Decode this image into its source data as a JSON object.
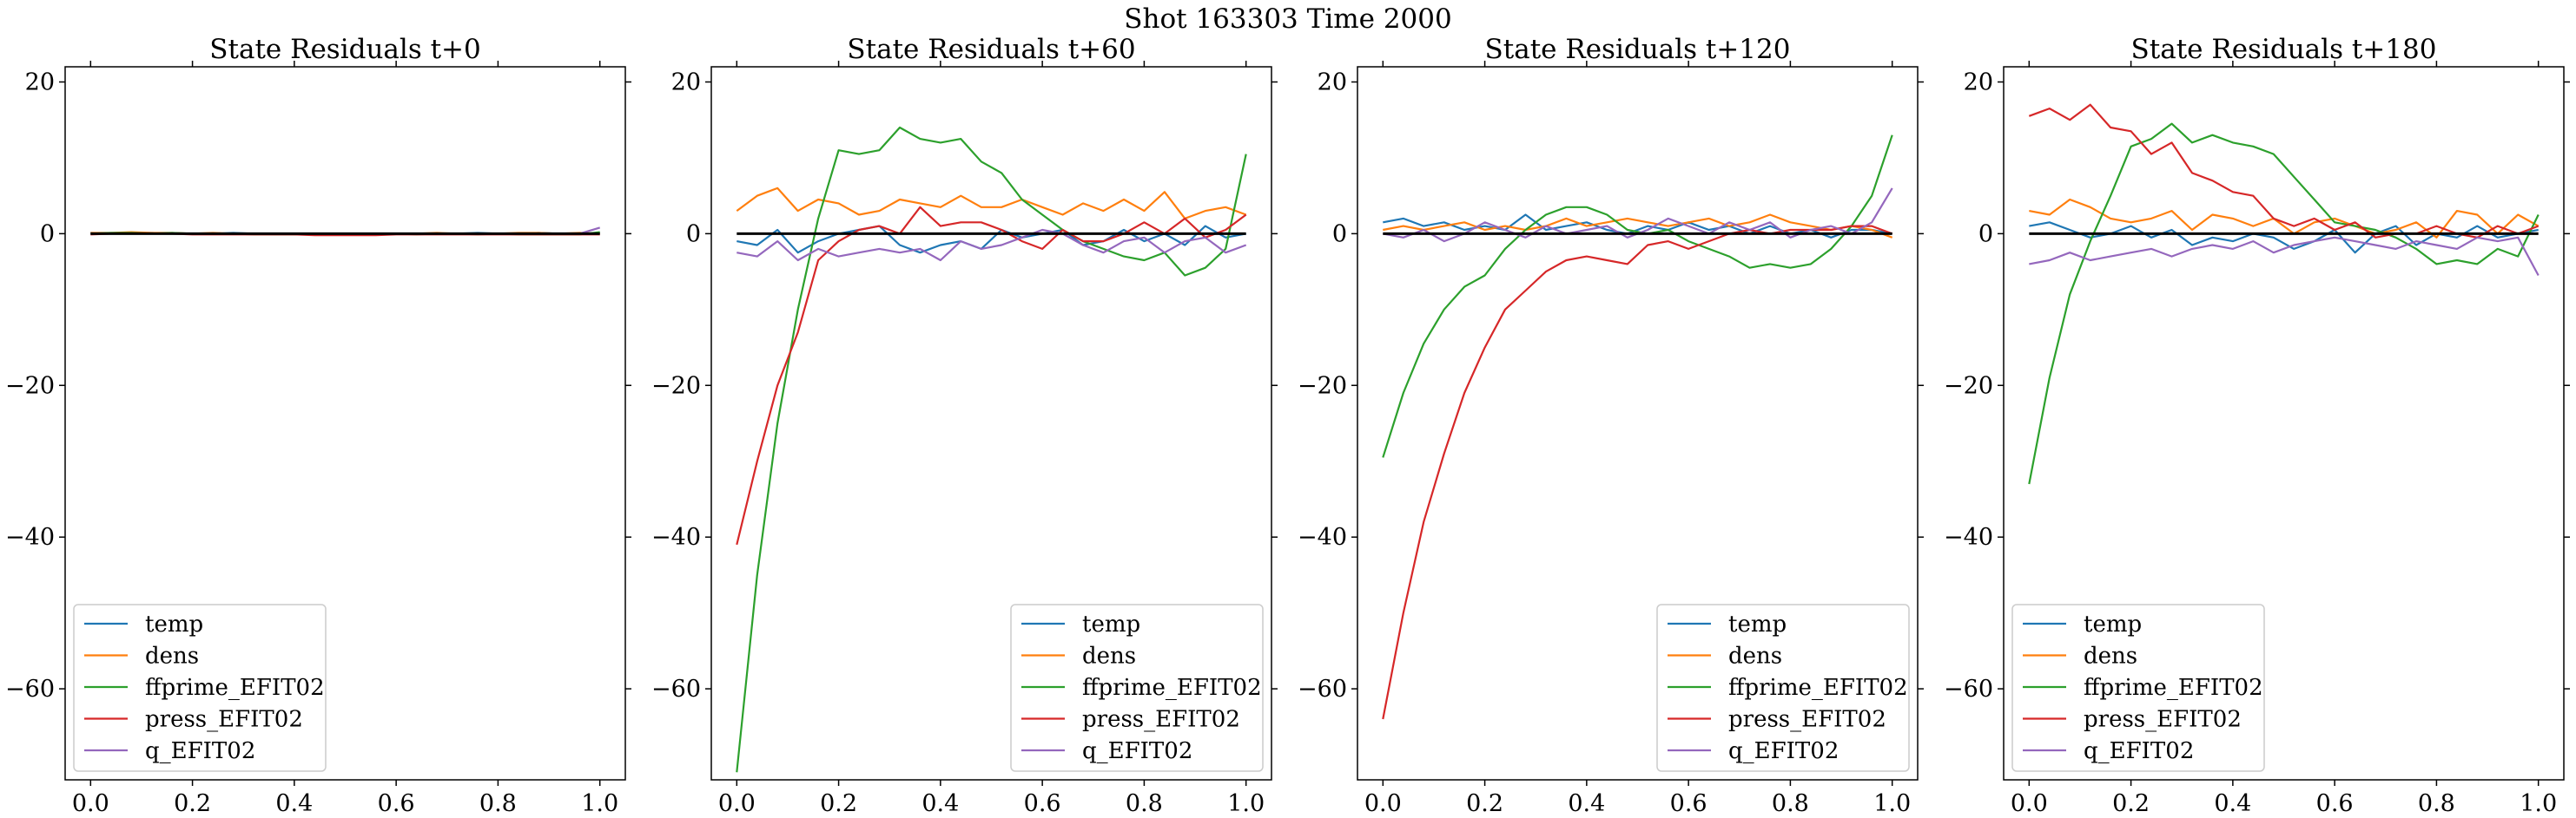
{
  "figure": {
    "title": "Shot 163303   Time 2000"
  },
  "chart_data": [
    {
      "type": "line",
      "title": "State Residuals t+0",
      "xlabel": "",
      "ylabel": "",
      "xlim": [
        -0.05,
        1.05
      ],
      "ylim": [
        -72,
        22
      ],
      "xticks": [
        "0.0",
        "0.2",
        "0.4",
        "0.6",
        "0.8",
        "1.0"
      ],
      "yticks": [
        "20",
        "0",
        "−20",
        "−40",
        "−60"
      ],
      "x": [
        0.0,
        0.04,
        0.08,
        0.12,
        0.16,
        0.2,
        0.24,
        0.28,
        0.32,
        0.36,
        0.4,
        0.44,
        0.48,
        0.52,
        0.56,
        0.6,
        0.64,
        0.68,
        0.72,
        0.76,
        0.8,
        0.84,
        0.88,
        0.92,
        0.96,
        1.0
      ],
      "legend": "lower-left",
      "series": [
        {
          "name": "temp",
          "color": "#1f77b4",
          "values": [
            0.1,
            0.0,
            0.1,
            0.1,
            0.0,
            0.0,
            0.0,
            0.1,
            0.0,
            -0.1,
            -0.1,
            0.0,
            -0.1,
            -0.1,
            0.0,
            0.0,
            0.0,
            0.0,
            0.0,
            0.1,
            0.0,
            0.0,
            0.1,
            0.0,
            0.0,
            0.1
          ]
        },
        {
          "name": "dens",
          "color": "#ff7f0e",
          "values": [
            0.1,
            0.1,
            0.2,
            0.1,
            0.1,
            0.0,
            0.1,
            0.0,
            0.0,
            0.0,
            -0.1,
            0.0,
            0.0,
            -0.1,
            0.0,
            0.0,
            0.0,
            0.1,
            0.0,
            0.0,
            0.0,
            0.1,
            0.1,
            0.0,
            0.1,
            0.0
          ]
        },
        {
          "name": "ffprime_EFIT02",
          "color": "#2ca02c",
          "values": [
            0.0,
            0.1,
            0.1,
            0.0,
            0.1,
            0.0,
            0.0,
            0.0,
            -0.1,
            -0.1,
            -0.1,
            -0.1,
            -0.1,
            -0.1,
            -0.1,
            0.0,
            -0.1,
            0.0,
            0.0,
            -0.1,
            0.0,
            -0.1,
            -0.1,
            -0.1,
            -0.1,
            0.2
          ]
        },
        {
          "name": "press_EFIT02",
          "color": "#d62728",
          "values": [
            -0.1,
            0.0,
            0.0,
            0.0,
            0.0,
            -0.1,
            -0.1,
            -0.1,
            -0.1,
            -0.1,
            -0.1,
            -0.2,
            -0.2,
            -0.2,
            -0.2,
            -0.1,
            -0.1,
            -0.1,
            -0.1,
            -0.1,
            -0.1,
            -0.1,
            -0.1,
            -0.1,
            -0.1,
            -0.1
          ]
        },
        {
          "name": "q_EFIT02",
          "color": "#9467bd",
          "values": [
            0.0,
            0.0,
            0.0,
            0.0,
            0.0,
            0.0,
            0.0,
            0.0,
            0.0,
            0.0,
            0.0,
            0.0,
            0.0,
            0.0,
            0.0,
            0.0,
            0.0,
            0.0,
            0.0,
            0.0,
            0.0,
            0.0,
            0.0,
            0.0,
            0.0,
            0.8
          ]
        }
      ]
    },
    {
      "type": "line",
      "title": "State Residuals t+60",
      "xlabel": "",
      "ylabel": "",
      "xlim": [
        -0.05,
        1.05
      ],
      "ylim": [
        -72,
        22
      ],
      "xticks": [
        "0.0",
        "0.2",
        "0.4",
        "0.6",
        "0.8",
        "1.0"
      ],
      "yticks": [
        "20",
        "0",
        "−20",
        "−40",
        "−60"
      ],
      "x": [
        0.0,
        0.04,
        0.08,
        0.12,
        0.16,
        0.2,
        0.24,
        0.28,
        0.32,
        0.36,
        0.4,
        0.44,
        0.48,
        0.52,
        0.56,
        0.6,
        0.64,
        0.68,
        0.72,
        0.76,
        0.8,
        0.84,
        0.88,
        0.92,
        0.96,
        1.0
      ],
      "legend": "lower-right",
      "series": [
        {
          "name": "temp",
          "color": "#1f77b4",
          "values": [
            -1.0,
            -1.5,
            0.5,
            -2.5,
            -1.0,
            0.0,
            0.5,
            1.0,
            -1.5,
            -2.5,
            -1.5,
            -1.0,
            -2.0,
            0.5,
            -0.5,
            0.0,
            0.5,
            -1.5,
            -1.0,
            0.5,
            -1.0,
            0.0,
            -1.5,
            1.0,
            -0.5,
            0.0
          ]
        },
        {
          "name": "dens",
          "color": "#ff7f0e",
          "values": [
            3.0,
            5.0,
            6.0,
            3.0,
            4.5,
            4.0,
            2.5,
            3.0,
            4.5,
            4.0,
            3.5,
            5.0,
            3.5,
            3.5,
            4.5,
            3.5,
            2.5,
            4.0,
            3.0,
            4.5,
            3.0,
            5.5,
            2.0,
            3.0,
            3.5,
            2.5
          ]
        },
        {
          "name": "ffprime_EFIT02",
          "color": "#2ca02c",
          "values": [
            -71.0,
            -45.0,
            -25.0,
            -10.0,
            2.0,
            11.0,
            10.5,
            11.0,
            14.0,
            12.5,
            12.0,
            12.5,
            9.5,
            8.0,
            4.5,
            2.5,
            0.5,
            -1.0,
            -2.0,
            -3.0,
            -3.5,
            -2.5,
            -5.5,
            -4.5,
            -2.0,
            10.5
          ]
        },
        {
          "name": "press_EFIT02",
          "color": "#d62728",
          "values": [
            -41.0,
            -30.0,
            -20.0,
            -13.0,
            -3.5,
            -1.0,
            0.5,
            1.0,
            0.0,
            3.5,
            1.0,
            1.5,
            1.5,
            0.5,
            -1.0,
            -2.0,
            0.5,
            -1.0,
            -1.0,
            0.0,
            1.5,
            0.0,
            2.0,
            -0.5,
            0.5,
            2.5
          ]
        },
        {
          "name": "q_EFIT02",
          "color": "#9467bd",
          "values": [
            -2.5,
            -3.0,
            -1.0,
            -3.5,
            -2.0,
            -3.0,
            -2.5,
            -2.0,
            -2.5,
            -2.0,
            -3.5,
            -1.0,
            -2.0,
            -1.5,
            -0.5,
            0.5,
            0.0,
            -1.5,
            -2.5,
            -1.0,
            -0.5,
            -2.5,
            -1.0,
            -0.5,
            -2.5,
            -1.5
          ]
        }
      ]
    },
    {
      "type": "line",
      "title": "State Residuals t+120",
      "xlabel": "",
      "ylabel": "",
      "xlim": [
        -0.05,
        1.05
      ],
      "ylim": [
        -72,
        22
      ],
      "xticks": [
        "0.0",
        "0.2",
        "0.4",
        "0.6",
        "0.8",
        "1.0"
      ],
      "yticks": [
        "20",
        "0",
        "−20",
        "−40",
        "−60"
      ],
      "x": [
        0.0,
        0.04,
        0.08,
        0.12,
        0.16,
        0.2,
        0.24,
        0.28,
        0.32,
        0.36,
        0.4,
        0.44,
        0.48,
        0.52,
        0.56,
        0.6,
        0.64,
        0.68,
        0.72,
        0.76,
        0.8,
        0.84,
        0.88,
        0.92,
        0.96,
        1.0
      ],
      "legend": "lower-right",
      "series": [
        {
          "name": "temp",
          "color": "#1f77b4",
          "values": [
            1.5,
            2.0,
            1.0,
            1.5,
            0.5,
            1.0,
            0.5,
            2.5,
            0.5,
            1.0,
            1.5,
            0.5,
            0.0,
            1.0,
            0.5,
            1.5,
            0.5,
            1.0,
            0.0,
            1.0,
            0.0,
            0.5,
            -0.5,
            0.5,
            0.5,
            0.0
          ]
        },
        {
          "name": "dens",
          "color": "#ff7f0e",
          "values": [
            0.5,
            1.0,
            0.5,
            1.0,
            1.5,
            0.5,
            1.0,
            0.5,
            1.0,
            2.0,
            1.0,
            1.5,
            2.0,
            1.5,
            1.0,
            1.5,
            2.0,
            1.0,
            1.5,
            2.5,
            1.5,
            1.0,
            0.5,
            1.0,
            0.5,
            -0.5
          ]
        },
        {
          "name": "ffprime_EFIT02",
          "color": "#2ca02c",
          "values": [
            -29.5,
            -21.0,
            -14.5,
            -10.0,
            -7.0,
            -5.5,
            -2.0,
            0.5,
            2.5,
            3.5,
            3.5,
            2.5,
            0.5,
            0.0,
            0.5,
            -1.0,
            -2.0,
            -3.0,
            -4.5,
            -4.0,
            -4.5,
            -4.0,
            -2.0,
            1.0,
            5.0,
            13.0
          ]
        },
        {
          "name": "press_EFIT02",
          "color": "#d62728",
          "values": [
            -64.0,
            -50.0,
            -38.0,
            -29.0,
            -21.0,
            -15.0,
            -10.0,
            -7.5,
            -5.0,
            -3.5,
            -3.0,
            -3.5,
            -4.0,
            -1.5,
            -1.0,
            -2.0,
            -1.0,
            0.0,
            0.5,
            0.0,
            0.5,
            0.5,
            0.5,
            1.0,
            1.0,
            0.0
          ]
        },
        {
          "name": "q_EFIT02",
          "color": "#9467bd",
          "values": [
            0.0,
            -0.5,
            0.5,
            -1.0,
            0.0,
            1.5,
            0.5,
            -0.5,
            1.0,
            0.0,
            0.5,
            1.0,
            -0.5,
            0.5,
            2.0,
            1.0,
            0.0,
            1.5,
            0.5,
            1.5,
            -0.5,
            0.5,
            1.0,
            0.0,
            1.5,
            6.0
          ]
        }
      ]
    },
    {
      "type": "line",
      "title": "State Residuals t+180",
      "xlabel": "",
      "ylabel": "",
      "xlim": [
        -0.05,
        1.05
      ],
      "ylim": [
        -72,
        22
      ],
      "xticks": [
        "0.0",
        "0.2",
        "0.4",
        "0.6",
        "0.8",
        "1.0"
      ],
      "yticks": [
        "20",
        "0",
        "−20",
        "−40",
        "−60"
      ],
      "x": [
        0.0,
        0.04,
        0.08,
        0.12,
        0.16,
        0.2,
        0.24,
        0.28,
        0.32,
        0.36,
        0.4,
        0.44,
        0.48,
        0.52,
        0.56,
        0.6,
        0.64,
        0.68,
        0.72,
        0.76,
        0.8,
        0.84,
        0.88,
        0.92,
        0.96,
        1.0
      ],
      "legend": "lower-left",
      "series": [
        {
          "name": "temp",
          "color": "#1f77b4",
          "values": [
            1.0,
            1.5,
            0.5,
            -0.5,
            0.0,
            1.0,
            -0.5,
            0.5,
            -1.5,
            -0.5,
            -1.0,
            0.0,
            -0.5,
            -2.0,
            -1.0,
            0.5,
            -2.5,
            0.0,
            1.0,
            -1.5,
            0.0,
            -0.5,
            1.0,
            -0.5,
            0.0,
            0.5
          ]
        },
        {
          "name": "dens",
          "color": "#ff7f0e",
          "values": [
            3.0,
            2.5,
            4.5,
            3.5,
            2.0,
            1.5,
            2.0,
            3.0,
            0.5,
            2.5,
            2.0,
            1.0,
            2.0,
            0.0,
            1.5,
            2.0,
            1.0,
            0.0,
            0.5,
            1.5,
            -0.5,
            3.0,
            2.5,
            0.0,
            2.5,
            1.0
          ]
        },
        {
          "name": "ffprime_EFIT02",
          "color": "#2ca02c",
          "values": [
            -33.0,
            -19.0,
            -8.0,
            -1.0,
            5.0,
            11.5,
            12.5,
            14.5,
            12.0,
            13.0,
            12.0,
            11.5,
            10.5,
            7.5,
            4.5,
            1.5,
            1.0,
            0.5,
            -0.5,
            -2.0,
            -4.0,
            -3.5,
            -4.0,
            -2.0,
            -3.0,
            2.5
          ]
        },
        {
          "name": "press_EFIT02",
          "color": "#d62728",
          "values": [
            15.5,
            16.5,
            15.0,
            17.0,
            14.0,
            13.5,
            10.5,
            12.0,
            8.0,
            7.0,
            5.5,
            5.0,
            2.0,
            1.0,
            2.0,
            0.5,
            1.5,
            -0.5,
            0.0,
            0.0,
            1.0,
            0.0,
            -0.5,
            1.0,
            0.0,
            1.0
          ]
        },
        {
          "name": "q_EFIT02",
          "color": "#9467bd",
          "values": [
            -4.0,
            -3.5,
            -2.5,
            -3.5,
            -3.0,
            -2.5,
            -2.0,
            -3.0,
            -2.0,
            -1.5,
            -2.0,
            -1.0,
            -2.5,
            -1.5,
            -1.0,
            -0.5,
            -1.0,
            -1.5,
            -2.0,
            -1.0,
            -1.5,
            -2.0,
            -0.5,
            -1.0,
            -0.5,
            -5.5
          ]
        }
      ]
    }
  ]
}
